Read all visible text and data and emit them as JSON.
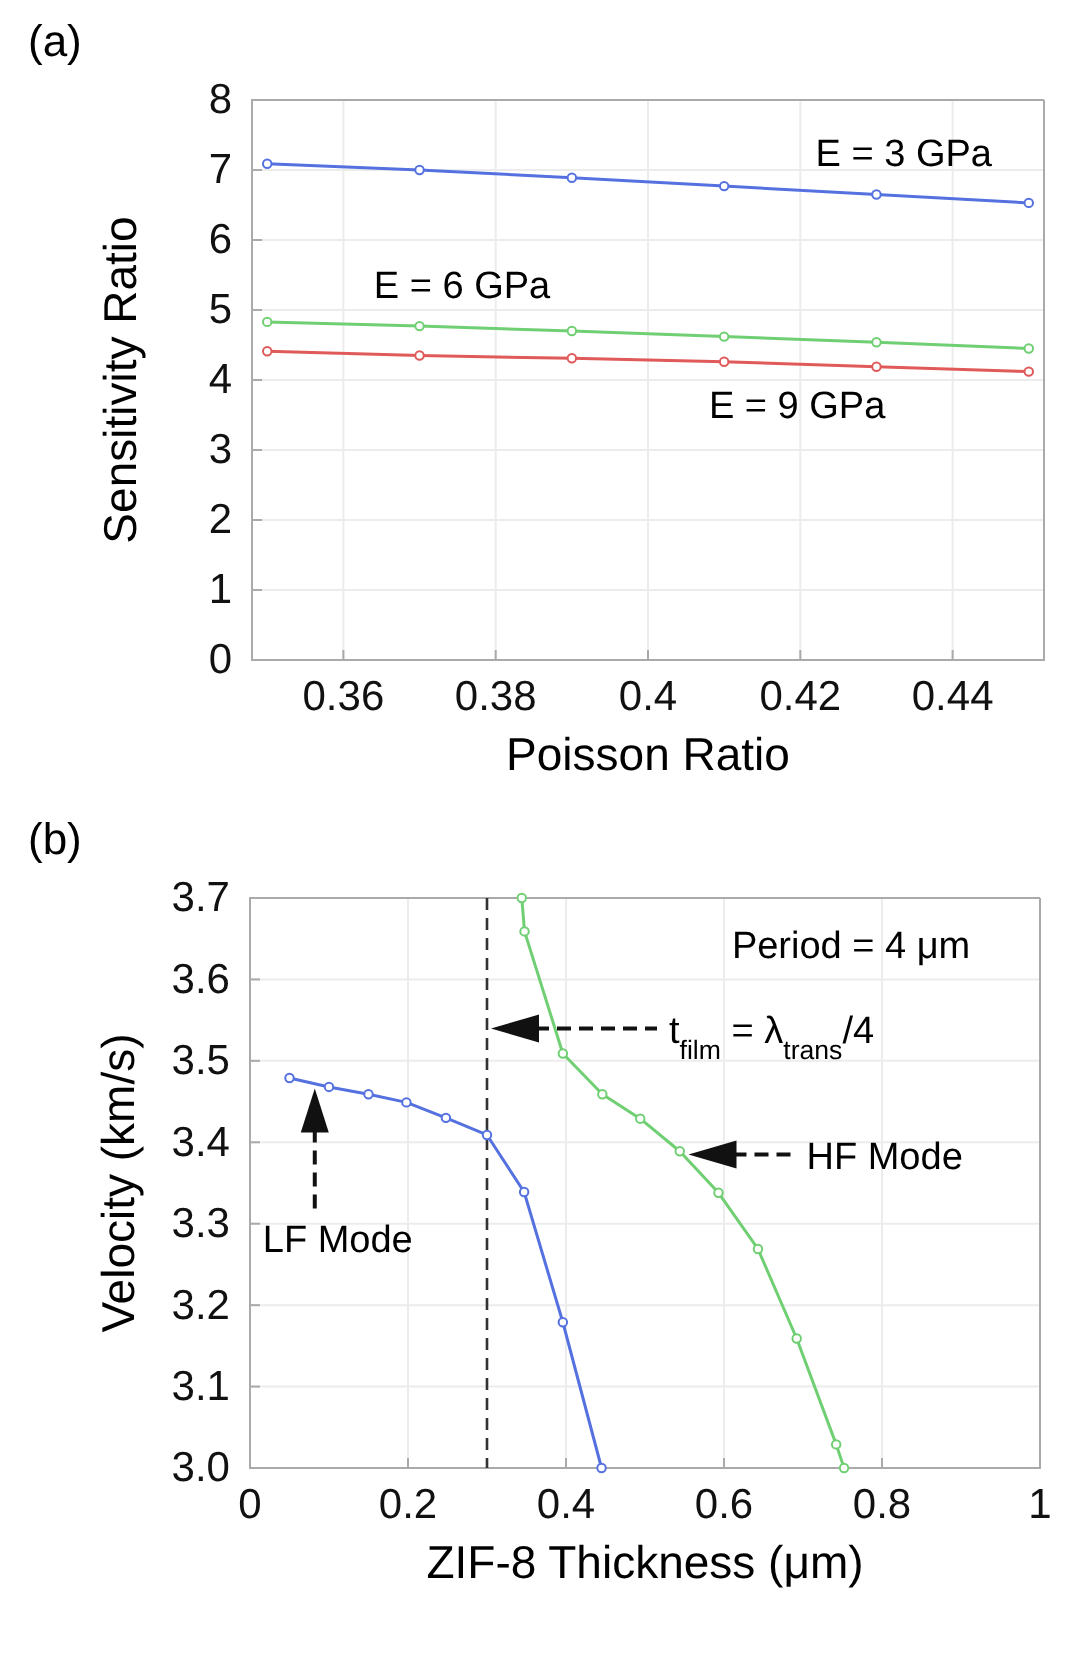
{
  "chart_data": [
    {
      "type": "line",
      "xlabel": "Poisson Ratio",
      "ylabel": "Sensitivity Ratio",
      "x": [
        0.35,
        0.37,
        0.39,
        0.41,
        0.43,
        0.45
      ],
      "xlim": [
        0.348,
        0.452
      ],
      "xticks": [
        0.36,
        0.38,
        0.4,
        0.42,
        0.44
      ],
      "ylim": [
        0,
        8
      ],
      "yticks": [
        0,
        1,
        2,
        3,
        4,
        5,
        6,
        7,
        8
      ],
      "grid": true,
      "marker": "circle",
      "line_style": "solid",
      "series": [
        {
          "name": "E = 3 GPa",
          "color": "#5571e0",
          "values": [
            7.09,
            7.0,
            6.89,
            6.77,
            6.65,
            6.53
          ]
        },
        {
          "name": "E = 6 GPa",
          "color": "#6fcf72",
          "values": [
            4.83,
            4.77,
            4.7,
            4.62,
            4.54,
            4.45
          ]
        },
        {
          "name": "E = 9 GPa",
          "color": "#e05a5a",
          "values": [
            4.41,
            4.35,
            4.31,
            4.26,
            4.19,
            4.12
          ]
        }
      ],
      "annotations": [
        "(a)"
      ]
    },
    {
      "type": "line",
      "xlabel": "ZIF-8 Thickness (μm)",
      "ylabel": "Velocity (km/s)",
      "xlim": [
        0,
        1
      ],
      "xticks": [
        0,
        0.2,
        0.4,
        0.6,
        0.8,
        {
          "value": 1,
          "label": "1"
        }
      ],
      "ylim": [
        3.0,
        3.7
      ],
      "yticks": [
        {
          "value": 3.0,
          "label": "3.0"
        },
        3.1,
        3.2,
        3.3,
        3.4,
        3.5,
        3.6,
        3.7
      ],
      "grid": true,
      "marker": "circle",
      "line_style": "solid",
      "series": [
        {
          "color": "#5571e0",
          "x": [
            0.05,
            0.1,
            0.15,
            0.198,
            0.248,
            0.3,
            0.347,
            0.396,
            0.445
          ],
          "values": [
            3.479,
            3.468,
            3.459,
            3.449,
            3.43,
            3.409,
            3.339,
            3.179,
            3.0
          ]
        },
        {
          "color": "#6fcf72",
          "x": [
            0.344,
            0.3475,
            0.396,
            0.446,
            0.494,
            0.544,
            0.593,
            0.643,
            0.692,
            0.742,
            0.752
          ],
          "values": [
            3.7,
            3.659,
            3.509,
            3.459,
            3.429,
            3.389,
            3.338,
            3.269,
            3.159,
            3.029,
            3.0
          ]
        }
      ],
      "ref_lines": [
        {
          "axis": "x",
          "value": 0.3,
          "color": "#333333",
          "line_style": "dashed"
        }
      ],
      "annotations": [
        "(b)",
        "Period = 4 μm",
        "t$_{film}$ = λ$_{trans}$/4",
        "HF Mode",
        "LF Mode"
      ]
    }
  ]
}
